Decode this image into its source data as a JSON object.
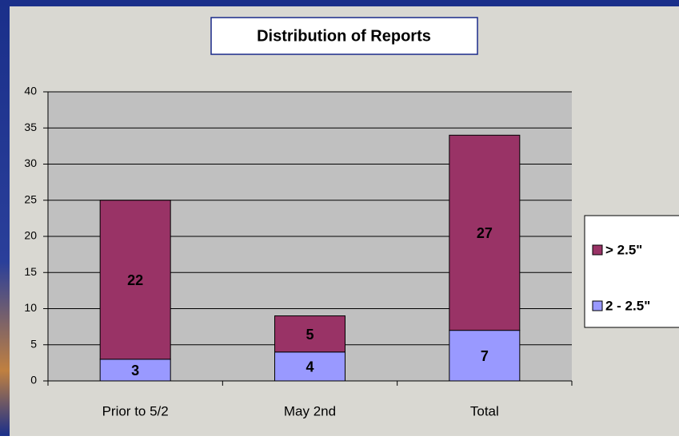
{
  "chart_data": {
    "type": "stacked_bar",
    "title": "Distribution of Reports",
    "categories": [
      "Prior to 5/2",
      "May 2nd",
      "Total"
    ],
    "series": [
      {
        "name": "2 - 2.5\"",
        "color": "#9999ff",
        "values": [
          3,
          4,
          7
        ]
      },
      {
        "name": "> 2.5\"",
        "color": "#993366",
        "values": [
          22,
          5,
          27
        ]
      }
    ],
    "ylim": [
      0,
      40
    ],
    "yticks": [
      0,
      5,
      10,
      15,
      20,
      25,
      30,
      35,
      40
    ],
    "grid": true,
    "legend": "right"
  }
}
